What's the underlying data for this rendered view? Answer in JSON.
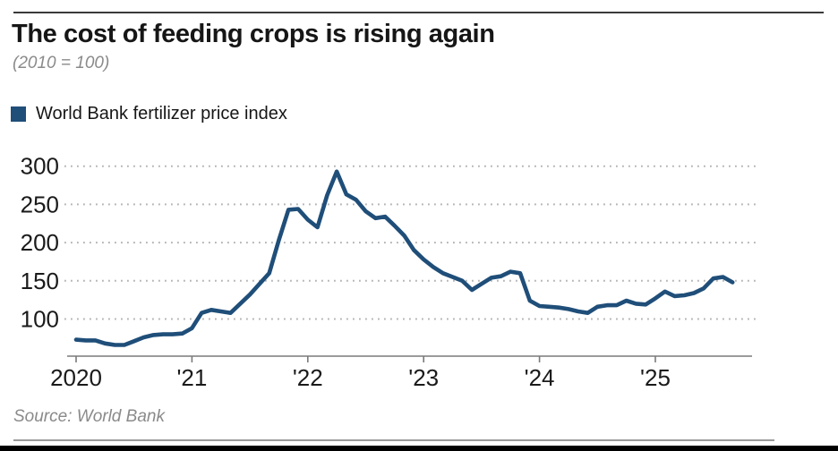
{
  "header": {
    "title": "The cost of feeding crops is rising again",
    "subtitle": "(2010 = 100)"
  },
  "legend": {
    "label": "World Bank fertilizer price index",
    "swatch_color": "#1f4e79"
  },
  "footer": {
    "source": "Source: World Bank"
  },
  "chart_data": {
    "type": "line",
    "title": "The cost of feeding crops is rising again",
    "index_note": "2010 = 100",
    "grid": "horizontal dotted",
    "legend_position": "top-left",
    "line_color": "#1f4e79",
    "axis_color": "#7a7a7a",
    "grid_color": "#b3b3b3",
    "ylim": [
      60,
      310
    ],
    "yticks": [
      {
        "value": 100,
        "label": "100"
      },
      {
        "value": 150,
        "label": "150"
      },
      {
        "value": 200,
        "label": "200"
      },
      {
        "value": 250,
        "label": "250"
      },
      {
        "value": 300,
        "label": "300"
      }
    ],
    "xticks": [
      {
        "month_index": 0,
        "label": "2020"
      },
      {
        "month_index": 12,
        "label": "'21"
      },
      {
        "month_index": 24,
        "label": "'22"
      },
      {
        "month_index": 36,
        "label": "'23"
      },
      {
        "month_index": 48,
        "label": "'24"
      },
      {
        "month_index": 60,
        "label": "'25"
      }
    ],
    "series": [
      {
        "name": "World Bank fertilizer price index",
        "frequency": "monthly",
        "x_start": "2020-01",
        "x_end": "2025-09",
        "values": [
          73,
          72,
          72,
          68,
          66,
          66,
          71,
          76,
          79,
          80,
          80,
          81,
          88,
          108,
          112,
          110,
          108,
          120,
          132,
          146,
          160,
          203,
          243,
          244,
          230,
          220,
          262,
          293,
          263,
          256,
          241,
          232,
          234,
          222,
          209,
          190,
          178,
          168,
          160,
          155,
          150,
          138,
          146,
          154,
          156,
          162,
          160,
          124,
          117,
          116,
          115,
          113,
          110,
          108,
          116,
          118,
          118,
          124,
          120,
          119,
          127,
          136,
          130,
          131,
          134,
          140,
          153,
          155,
          148
        ]
      }
    ]
  }
}
